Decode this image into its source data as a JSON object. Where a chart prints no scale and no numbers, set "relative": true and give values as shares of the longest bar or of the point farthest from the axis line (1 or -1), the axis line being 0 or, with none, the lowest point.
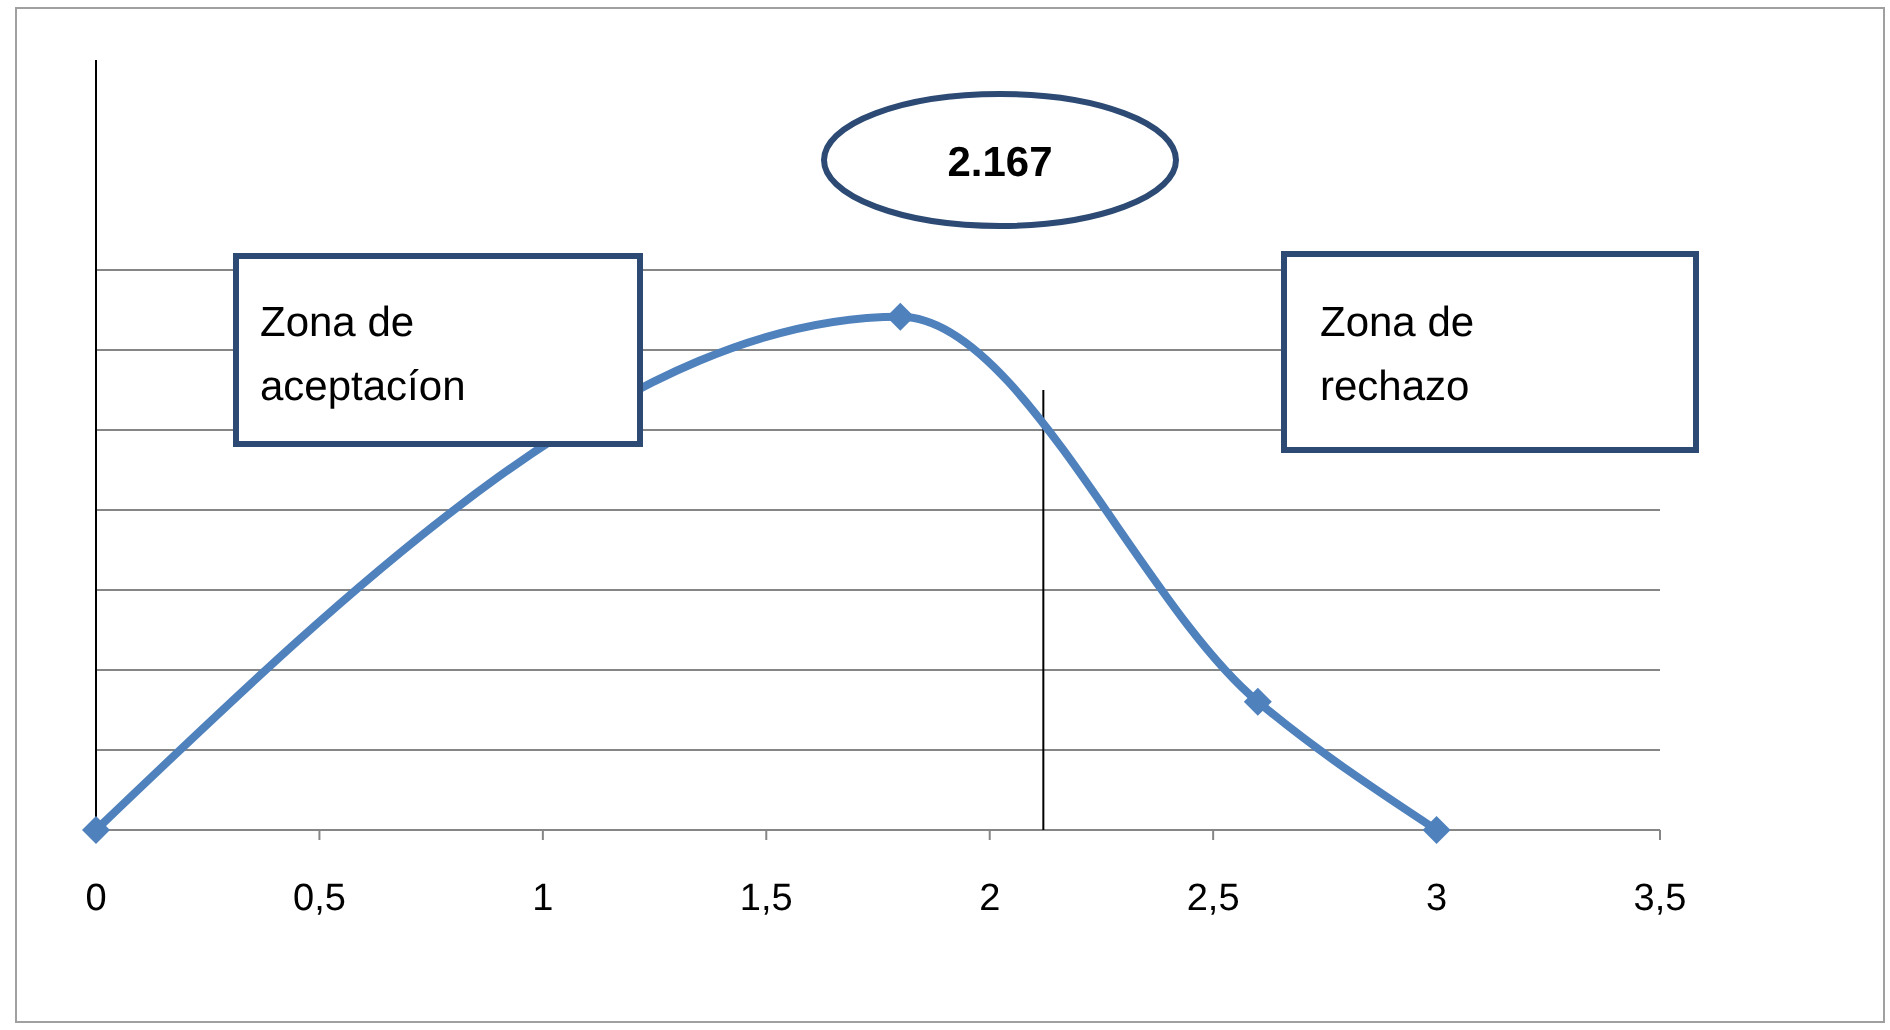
{
  "chart_data": {
    "type": "line",
    "relative": true,
    "x": [
      0,
      1.8,
      2.6,
      3
    ],
    "series": [
      {
        "color": "#4f81bd",
        "values": [
          0,
          1,
          0.25,
          0
        ]
      }
    ],
    "xlim": [
      0,
      3.5
    ],
    "xticks": [
      0,
      {
        "value": 0.5,
        "label": "0,5"
      },
      1,
      {
        "value": 1.5,
        "label": "1,5"
      },
      2,
      {
        "value": 2.5,
        "label": "2,5"
      },
      3,
      {
        "value": 3.5,
        "label": "3,5"
      }
    ],
    "grid": "y",
    "marker": "diamond",
    "line_style": "solid",
    "ref_lines": [
      {
        "axis": "x",
        "value": 2.12,
        "color": "#000000"
      }
    ],
    "annotations": [
      "2.167",
      "Zona de aceptacíon",
      "Zona de rechazo"
    ]
  }
}
